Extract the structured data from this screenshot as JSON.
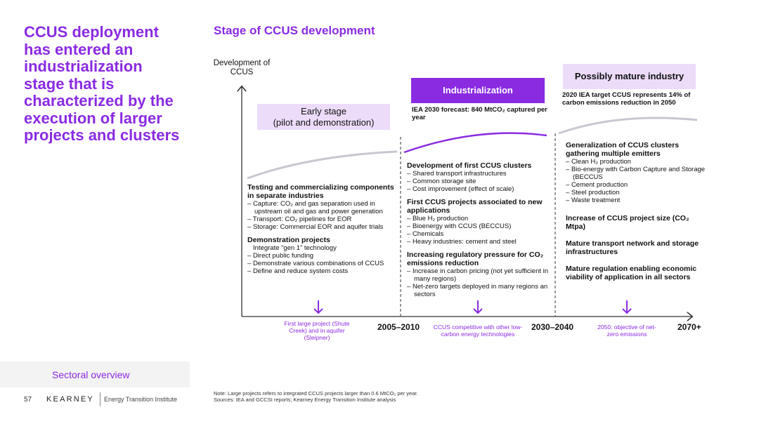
{
  "left": {
    "headline": "CCUS deployment has entered an industrialization stage that is characterized by the execution of larger projects and clusters",
    "section_link": "Sectoral overview",
    "page_number": "57",
    "logo": "KEARNEY",
    "logo_subtitle": "Energy Transition Institute"
  },
  "title": "Stage of CCUS development",
  "y_axis_label": "Development of CCUS",
  "stages": {
    "early": {
      "title": "Early stage",
      "subtitle": "(pilot and demonstration)"
    },
    "industrialization": {
      "title": "Industrialization",
      "forecast": "IEA 2030 forecast: 840 MtCO₂ captured per year"
    },
    "mature": {
      "title": "Possibly mature industry",
      "target": "2020 IEA target  CCUS represents 14% of carbon emissions reduction in 2050"
    }
  },
  "col1": {
    "h1": "Testing and commercializing components in separate industries",
    "items1": [
      "Capture: CO₂ and gas separation used in upstream oil and gas and power generation",
      "Transport: CO₂ pipelines for EOR",
      "Storage: Commercial EOR and aquifer trials"
    ],
    "h2": "Demonstration projects",
    "sub2": "Integrate “gen 1” technology",
    "items2": [
      "Direct public funding",
      "Demonstrate various combinations of CCUS",
      "Define and reduce system costs"
    ]
  },
  "col2": {
    "h1": "Development of first CCUS clusters",
    "items1": [
      "Shared transport infrastructures",
      "Common storage site",
      "Cost improvement (effect of scale)"
    ],
    "h2": "First CCUS projects associated to new applications",
    "items2": [
      "Blue H₂ production",
      "Bioenergy with CCUS (BECCUS)",
      "Chemicals",
      "Heavy industries: cement and steel"
    ],
    "h3": "Increasing regulatory pressure for CO₂ emissions reduction",
    "items3": [
      "Increase in carbon pricing (not yet sufficient in many regions)",
      "Net-zero targets deployed in many regions an sectors"
    ]
  },
  "col3": {
    "h1": "Generalization of CCUS clusters gathering multiple emitters",
    "items1": [
      "Clean H₂ production",
      "Bio-energy with Carbon Capture and Storage (BECCUS",
      "Cement production",
      "Steel production",
      "Waste treatment"
    ],
    "h2": "Increase of CCUS project size (CO₂ Mtpa)",
    "h3": "Mature transport network and storage infrastructures",
    "h4": "Mature regulation enabling economic viability of application in all sectors"
  },
  "x_ticks": [
    "2005–2010",
    "2030–2040",
    "2070+"
  ],
  "milestones": [
    "First large project (Shute Creek) and in aquifer (Sleipner)",
    "CCUS competitive with other low-carbon energy technologies",
    "2050: objective of net-zero emissions"
  ],
  "note": "Note: Large projects refers to integrated CCUS projects larger than 0.6 MtCO₂ per year.",
  "sources": "Sources: IEA and GCCSI reports; Kearney Energy Transition Institute analysis",
  "colors": {
    "accent": "#8a2be2",
    "light_box": "#ecdcfa",
    "curve_grey": "#c8c8d0"
  }
}
